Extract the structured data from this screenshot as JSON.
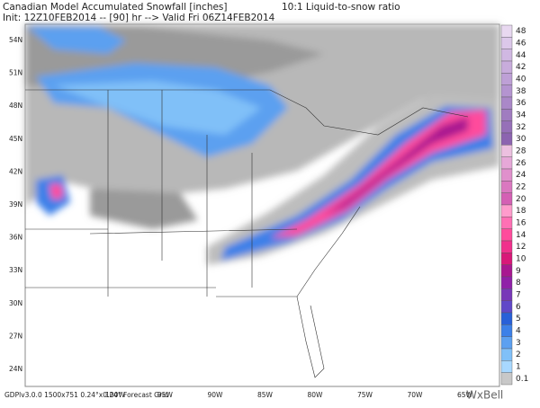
{
  "header": {
    "title": "Canadian Model Accumulated Snowfall [inches]",
    "ratio": "10:1 Liquid-to-snow ratio",
    "run": "Init: 12Z10FEB2014 -- [90] hr --> Valid Fri 06Z14FEB2014"
  },
  "map": {
    "latitude_labels": [
      "54N",
      "51N",
      "48N",
      "45N",
      "42N",
      "39N",
      "36N",
      "33N",
      "30N",
      "27N",
      "24N"
    ],
    "longitude_labels": [
      "100W",
      "95W",
      "90W",
      "85W",
      "80W",
      "75W",
      "70W",
      "65W"
    ]
  },
  "colorbar": {
    "levels": [
      48,
      46,
      44,
      42,
      40,
      38,
      36,
      34,
      32,
      30,
      28,
      26,
      24,
      22,
      20,
      18,
      16,
      14,
      12,
      10,
      9,
      8,
      7,
      6,
      5,
      4,
      3,
      2,
      1,
      0.1
    ],
    "colors": [
      "#e8d8f0",
      "#dcc8ea",
      "#d0b8e2",
      "#c8acdc",
      "#bea0d6",
      "#b494d0",
      "#aa88c8",
      "#a07cc0",
      "#9670b8",
      "#8c64b0",
      "#ecc0e0",
      "#e6a8d8",
      "#e090cc",
      "#da78c0",
      "#d460b4",
      "#ff9ccc",
      "#ff70b4",
      "#ff4c9c",
      "#f0308c",
      "#d81878",
      "#a81890",
      "#9020a8",
      "#7838b8",
      "#6048c8",
      "#2860d8",
      "#3c80e8",
      "#5ca0f0",
      "#80c0f8",
      "#a8d8ff",
      "#c8c8c8"
    ]
  },
  "footer": {
    "grid_info": "GDPlv3.0.0 1500x751 0.24°x0.24° Forecast Grid",
    "brand": "WxBell"
  }
}
